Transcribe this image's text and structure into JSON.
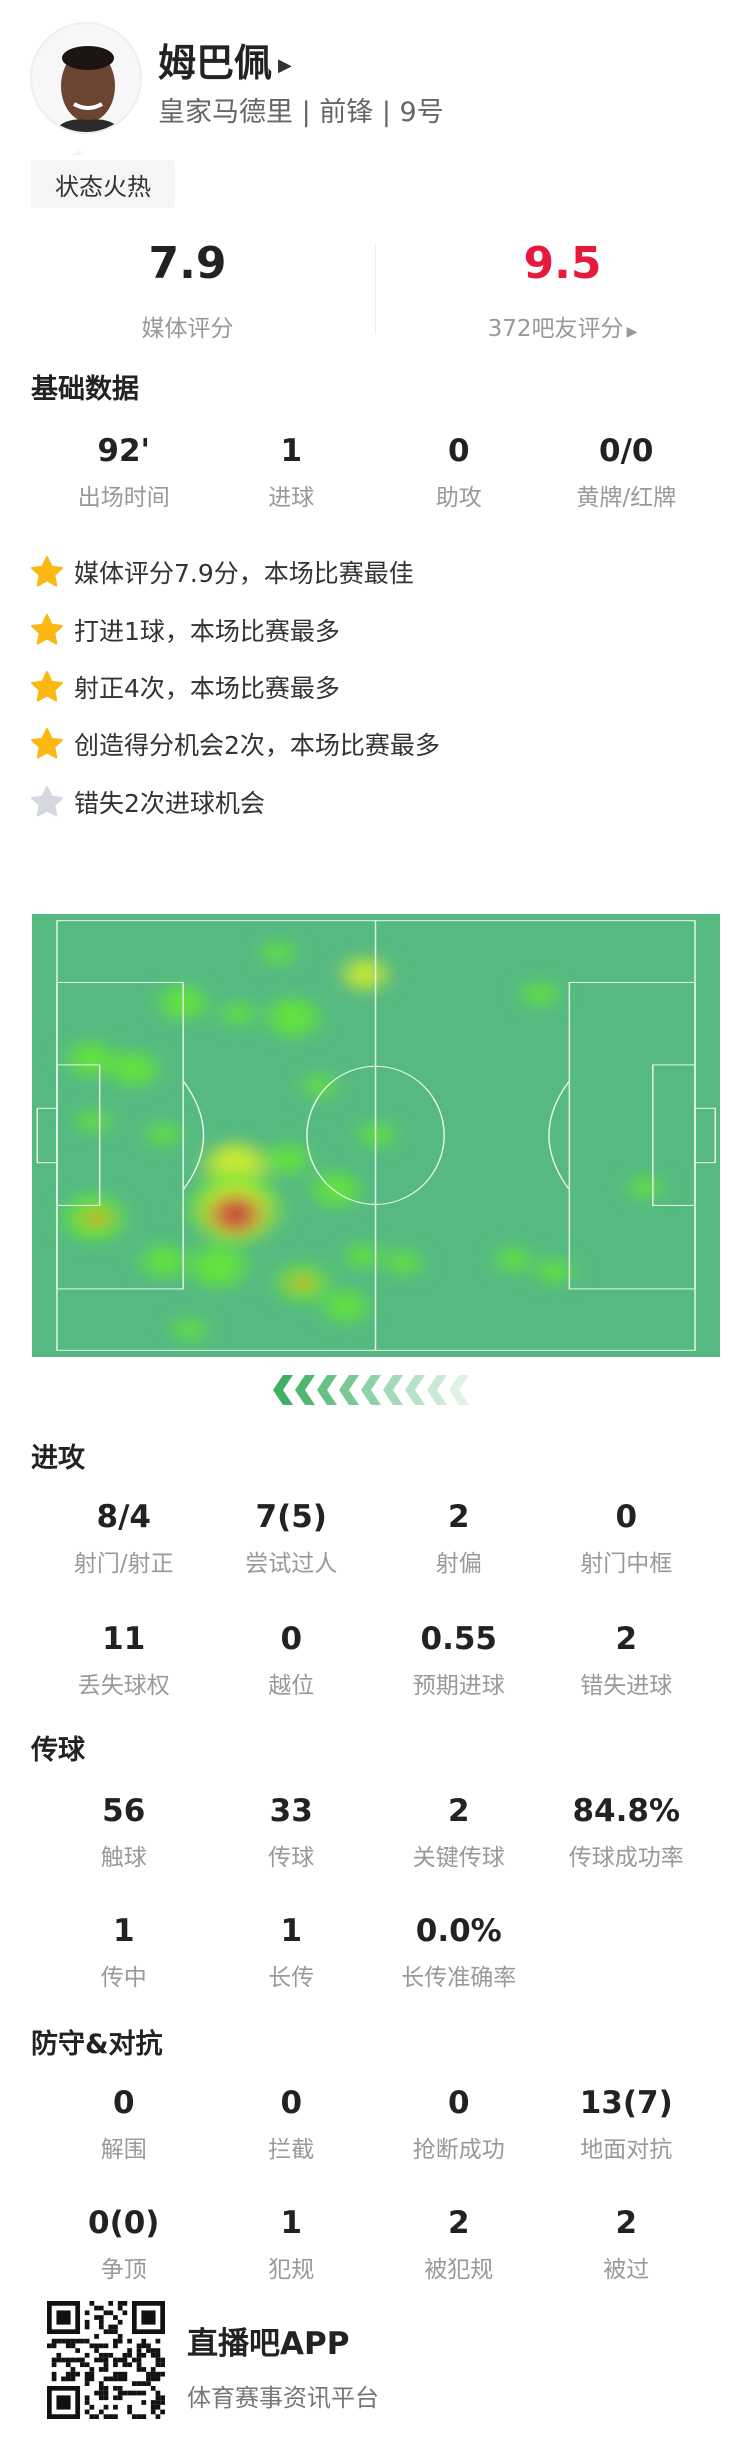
{
  "player": {
    "name": "姆巴佩",
    "team": "皇家马德里",
    "position": "前锋",
    "number": "9号",
    "status_badge": "状态火热"
  },
  "ratings": {
    "media_score": "7.9",
    "media_label": "媒体评分",
    "fan_score": "9.5",
    "fan_label": "372吧友评分",
    "fan_color": "#e8193c"
  },
  "basic": {
    "title": "基础数据",
    "items": [
      {
        "value": "92'",
        "label": "出场时间"
      },
      {
        "value": "1",
        "label": "进球"
      },
      {
        "value": "0",
        "label": "助攻"
      },
      {
        "value": "0/0",
        "label": "黄牌/红牌"
      }
    ]
  },
  "highlights": [
    {
      "text": "媒体评分7.9分，本场比赛最佳",
      "icon": "star-gold"
    },
    {
      "text": "打进1球，本场比赛最多",
      "icon": "star-gold"
    },
    {
      "text": "射正4次，本场比赛最多",
      "icon": "star-gold"
    },
    {
      "text": "创造得分机会2次，本场比赛最多",
      "icon": "star-gold"
    },
    {
      "text": "错失2次进球机会",
      "icon": "star-gray"
    }
  ],
  "attack": {
    "title": "进攻",
    "items": [
      {
        "value": "8/4",
        "label": "射门/射正"
      },
      {
        "value": "7(5)",
        "label": "尝试过人"
      },
      {
        "value": "2",
        "label": "射偏"
      },
      {
        "value": "0",
        "label": "射门中框"
      },
      {
        "value": "11",
        "label": "丢失球权"
      },
      {
        "value": "0",
        "label": "越位"
      },
      {
        "value": "0.55",
        "label": "预期进球"
      },
      {
        "value": "2",
        "label": "错失进球"
      }
    ]
  },
  "passing": {
    "title": "传球",
    "items": [
      {
        "value": "56",
        "label": "触球"
      },
      {
        "value": "33",
        "label": "传球"
      },
      {
        "value": "2",
        "label": "关键传球"
      },
      {
        "value": "84.8%",
        "label": "传球成功率"
      },
      {
        "value": "1",
        "label": "传中"
      },
      {
        "value": "1",
        "label": "长传"
      },
      {
        "value": "0.0%",
        "label": "长传准确率"
      }
    ]
  },
  "defense": {
    "title": "防守&对抗",
    "items": [
      {
        "value": "0",
        "label": "解围"
      },
      {
        "value": "0",
        "label": "拦截"
      },
      {
        "value": "0",
        "label": "抢断成功"
      },
      {
        "value": "13(7)",
        "label": "地面对抗"
      },
      {
        "value": "0(0)",
        "label": "争顶"
      },
      {
        "value": "1",
        "label": "犯规"
      },
      {
        "value": "2",
        "label": "被犯规"
      },
      {
        "value": "2",
        "label": "被过"
      }
    ]
  },
  "footer": {
    "app_name": "直播吧APP",
    "slogan": "体育赛事资讯平台"
  },
  "colors": {
    "pitch": "#56b982",
    "star_gold": "#fbb712",
    "star_gray": "#d5d7e0"
  }
}
